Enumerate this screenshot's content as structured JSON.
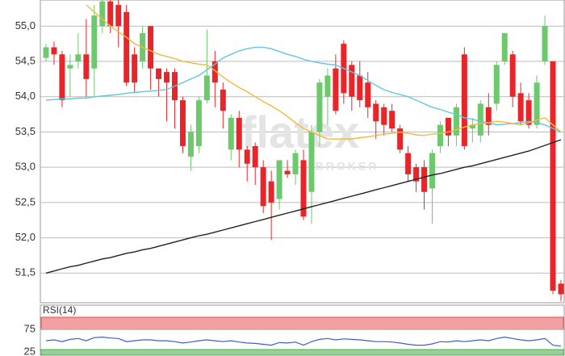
{
  "chart_data": [
    {
      "type": "candlestick",
      "ylim": [
        51.08,
        55.37
      ],
      "yticks": [
        {
          "value": 51.5,
          "label": "51,5"
        },
        {
          "value": 52,
          "label": "52,0"
        },
        {
          "value": 52.5,
          "label": "52,5"
        },
        {
          "value": 53,
          "label": "53,0"
        },
        {
          "value": 53.5,
          "label": "53,5"
        },
        {
          "value": 54,
          "label": "54,0"
        },
        {
          "value": 54.5,
          "label": "54,5"
        },
        {
          "value": 55,
          "label": "55,0"
        }
      ],
      "grid": true,
      "watermark": [
        "flatex",
        "BROKER"
      ],
      "up_color": "#6cc96c",
      "down_color": "#e8262a",
      "open": [
        54.55,
        54.7,
        54.6,
        54.4,
        54.5,
        54.6,
        54.4,
        55.0,
        55.35,
        55.3,
        55.2,
        54.6,
        54.5,
        55.0,
        54.4,
        54.35,
        54.35,
        53.95,
        53.15,
        53.3,
        53.95,
        54.5,
        54.1,
        53.25,
        53.7,
        53.25,
        53.3,
        53.0,
        52.8,
        52.55,
        52.95,
        52.9,
        53.1,
        52.65,
        53.5,
        54.0,
        54.4,
        54.75,
        54.45,
        54.3,
        54.2,
        53.9,
        53.85,
        53.8,
        53.55,
        53.2,
        53.0,
        53.0,
        52.7,
        53.3,
        53.7,
        53.45,
        54.6,
        53.55,
        53.45,
        53.85,
        53.9,
        54.5,
        54.6,
        54.05,
        53.95,
        53.6,
        54.5,
        54.5,
        51.35
      ],
      "high": [
        54.75,
        54.78,
        54.65,
        54.6,
        54.9,
        55.1,
        55.3,
        55.4,
        55.4,
        55.4,
        55.3,
        54.7,
        55.0,
        55.0,
        54.4,
        54.4,
        54.4,
        54.0,
        53.6,
        54.0,
        54.95,
        54.65,
        54.2,
        53.75,
        53.8,
        53.3,
        53.35,
        53.1,
        52.95,
        53.1,
        53.1,
        53.25,
        53.25,
        53.6,
        54.25,
        54.4,
        54.6,
        54.8,
        54.5,
        54.5,
        54.35,
        53.95,
        53.9,
        53.9,
        53.6,
        53.3,
        53.05,
        53.1,
        53.25,
        53.65,
        53.7,
        53.9,
        54.7,
        53.7,
        53.95,
        54.05,
        54.5,
        54.9,
        54.65,
        54.2,
        54.05,
        54.3,
        55.15,
        54.5,
        51.4
      ],
      "low": [
        54.5,
        54.45,
        53.85,
        54.0,
        54.4,
        54.0,
        54.0,
        54.9,
        54.9,
        54.7,
        54.15,
        54.05,
        54.4,
        54.1,
        54.0,
        53.65,
        53.55,
        53.2,
        52.95,
        53.2,
        53.9,
        53.85,
        53.55,
        53.1,
        53.0,
        52.8,
        52.75,
        52.35,
        51.97,
        52.4,
        52.85,
        52.75,
        52.25,
        52.2,
        53.3,
        53.6,
        53.75,
        53.9,
        53.8,
        53.85,
        53.7,
        53.4,
        53.45,
        53.5,
        53.2,
        52.8,
        52.65,
        52.4,
        52.2,
        53.2,
        53.3,
        53.3,
        53.25,
        53.35,
        53.35,
        53.45,
        53.8,
        54.45,
        53.85,
        53.6,
        53.55,
        53.55,
        54.45,
        51.2,
        51.1
      ],
      "close": [
        54.7,
        54.6,
        53.95,
        54.45,
        54.6,
        54.25,
        55.15,
        55.35,
        55.0,
        55.0,
        54.2,
        54.2,
        54.9,
        54.4,
        54.25,
        54.2,
        53.95,
        53.3,
        53.5,
        53.95,
        54.3,
        54.2,
        53.8,
        53.7,
        53.25,
        53.05,
        53.0,
        52.45,
        52.5,
        53.1,
        52.9,
        53.2,
        52.3,
        53.5,
        54.2,
        54.3,
        53.8,
        54.05,
        54.0,
        53.95,
        53.85,
        53.65,
        53.6,
        53.55,
        53.25,
        52.9,
        52.8,
        52.65,
        53.2,
        53.6,
        53.45,
        53.85,
        53.3,
        53.6,
        53.9,
        53.6,
        54.45,
        54.9,
        54.0,
        53.65,
        53.6,
        54.2,
        55.0,
        51.25,
        51.2
      ],
      "lines": [
        {
          "color": "#222222",
          "values": [
            51.5,
            51.53,
            51.56,
            51.59,
            51.61,
            51.64,
            51.67,
            51.7,
            51.72,
            51.75,
            51.78,
            51.8,
            51.83,
            51.85,
            51.88,
            51.91,
            51.94,
            51.97,
            52.0,
            52.03,
            52.05,
            52.08,
            52.11,
            52.14,
            52.17,
            52.2,
            52.23,
            52.26,
            52.29,
            52.32,
            52.35,
            52.38,
            52.41,
            52.44,
            52.47,
            52.5,
            52.53,
            52.56,
            52.59,
            52.62,
            52.65,
            52.68,
            52.71,
            52.74,
            52.77,
            52.8,
            52.83,
            52.86,
            52.89,
            52.91,
            52.94,
            52.97,
            53.0,
            53.02,
            53.05,
            53.08,
            53.11,
            53.14,
            53.17,
            53.2,
            53.23,
            53.27,
            53.31,
            53.35,
            53.39
          ]
        },
        {
          "color": "#5ec8e2",
          "values": [
            53.95,
            53.96,
            53.97,
            53.97,
            53.98,
            53.98,
            54.0,
            54.01,
            54.02,
            54.03,
            54.05,
            54.06,
            54.07,
            54.08,
            54.09,
            54.1,
            54.15,
            54.2,
            54.25,
            54.3,
            54.38,
            54.46,
            54.55,
            54.6,
            54.65,
            54.68,
            54.7,
            54.7,
            54.68,
            54.64,
            54.6,
            54.57,
            54.53,
            54.5,
            54.48,
            54.46,
            54.45,
            54.4,
            54.35,
            54.3,
            54.23,
            54.16,
            54.1,
            54.06,
            54.03,
            54.0,
            53.95,
            53.9,
            53.85,
            53.82,
            53.78,
            53.75,
            53.7,
            53.68,
            53.65,
            53.63,
            53.6,
            53.61,
            53.62,
            53.63,
            53.65,
            53.63,
            53.6,
            53.55,
            53.5
          ]
        },
        {
          "color": "#f3b93e",
          "values": [
            null,
            null,
            null,
            null,
            null,
            55.3,
            55.2,
            55.1,
            55.0,
            54.92,
            54.84,
            54.75,
            54.7,
            54.65,
            54.6,
            54.57,
            54.54,
            54.5,
            54.48,
            54.46,
            54.45,
            54.37,
            54.28,
            54.2,
            54.13,
            54.07,
            54.0,
            53.93,
            53.87,
            53.8,
            53.72,
            53.63,
            53.55,
            53.5,
            53.45,
            53.4,
            53.4,
            53.4,
            53.4,
            53.42,
            53.43,
            53.45,
            53.47,
            53.48,
            53.5,
            53.48,
            53.46,
            53.45,
            53.47,
            53.48,
            53.5,
            53.53,
            53.57,
            53.6,
            53.62,
            53.63,
            53.65,
            53.64,
            53.62,
            53.6,
            53.63,
            53.67,
            53.7,
            53.6,
            53.5
          ]
        }
      ]
    },
    {
      "type": "line",
      "title": "RSI(14)",
      "ylim": [
        16,
        104
      ],
      "yticks": [
        25,
        75
      ],
      "color": "#3a5fd0",
      "values": [
        50,
        52,
        48,
        53,
        55,
        50,
        57,
        58,
        56,
        55,
        48,
        50,
        52,
        52,
        50,
        50,
        48,
        45,
        47,
        50,
        52,
        50,
        48,
        50,
        47,
        45,
        44,
        42,
        40,
        46,
        45,
        47,
        40,
        48,
        53,
        55,
        52,
        54,
        53,
        52,
        50,
        48,
        48,
        47,
        45,
        42,
        40,
        40,
        43,
        48,
        47,
        50,
        48,
        50,
        52,
        50,
        55,
        58,
        55,
        52,
        50,
        52,
        55,
        40,
        38
      ]
    }
  ]
}
